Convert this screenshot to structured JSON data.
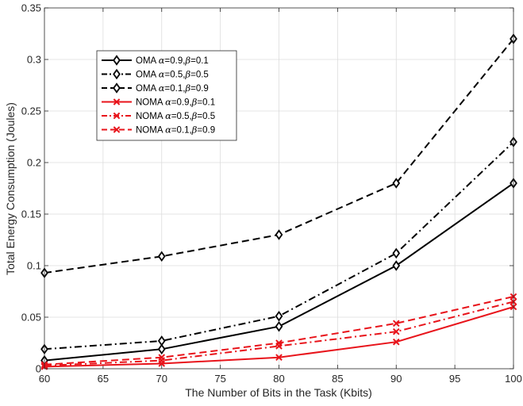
{
  "chart_data": {
    "type": "line",
    "title": "",
    "xlabel": "The Number of Bits in the Task (Kbits)",
    "ylabel": "Total Energy Consumption (Joules)",
    "xlim": [
      60,
      100
    ],
    "ylim": [
      0,
      0.35
    ],
    "xticks": [
      60,
      65,
      70,
      75,
      80,
      85,
      90,
      95,
      100
    ],
    "yticks": [
      0,
      0.05,
      0.1,
      0.15,
      0.2,
      0.25,
      0.3,
      0.35
    ],
    "xtick_labels": [
      "60",
      "65",
      "70",
      "75",
      "80",
      "85",
      "90",
      "95",
      "100"
    ],
    "ytick_labels": [
      "0",
      "0.05",
      "0.1",
      "0.15",
      "0.2",
      "0.25",
      "0.3",
      "0.35"
    ],
    "grid": true,
    "legend_position": "top-left",
    "x": [
      60,
      70,
      80,
      90,
      100
    ],
    "series": [
      {
        "name": "OMA α=0.9,β=0.1",
        "scheme": "OMA",
        "alpha": "0.9",
        "beta": "0.1",
        "values": [
          0.008,
          0.019,
          0.041,
          0.1,
          0.18
        ],
        "color": "#000000",
        "dash": "solid",
        "marker": "diamond"
      },
      {
        "name": "OMA α=0.5,β=0.5",
        "scheme": "OMA",
        "alpha": "0.5",
        "beta": "0.5",
        "values": [
          0.019,
          0.027,
          0.051,
          0.112,
          0.22
        ],
        "color": "#000000",
        "dash": "dashdot",
        "marker": "diamond"
      },
      {
        "name": "OMA α=0.1,β=0.9",
        "scheme": "OMA",
        "alpha": "0.1",
        "beta": "0.9",
        "values": [
          0.093,
          0.109,
          0.13,
          0.18,
          0.32
        ],
        "color": "#000000",
        "dash": "dashed",
        "marker": "diamond"
      },
      {
        "name": "NOMA α=0.9,β=0.1",
        "scheme": "NOMA",
        "alpha": "0.9",
        "beta": "0.1",
        "values": [
          0.002,
          0.005,
          0.011,
          0.026,
          0.06
        ],
        "color": "#e8141b",
        "dash": "solid",
        "marker": "x"
      },
      {
        "name": "NOMA α=0.5,β=0.5",
        "scheme": "NOMA",
        "alpha": "0.5",
        "beta": "0.5",
        "values": [
          0.003,
          0.008,
          0.022,
          0.036,
          0.065
        ],
        "color": "#e8141b",
        "dash": "dashdot",
        "marker": "x"
      },
      {
        "name": "NOMA α=0.1,β=0.9",
        "scheme": "NOMA",
        "alpha": "0.1",
        "beta": "0.9",
        "values": [
          0.004,
          0.011,
          0.025,
          0.044,
          0.07
        ],
        "color": "#e8141b",
        "dash": "dashed",
        "marker": "x"
      }
    ]
  }
}
